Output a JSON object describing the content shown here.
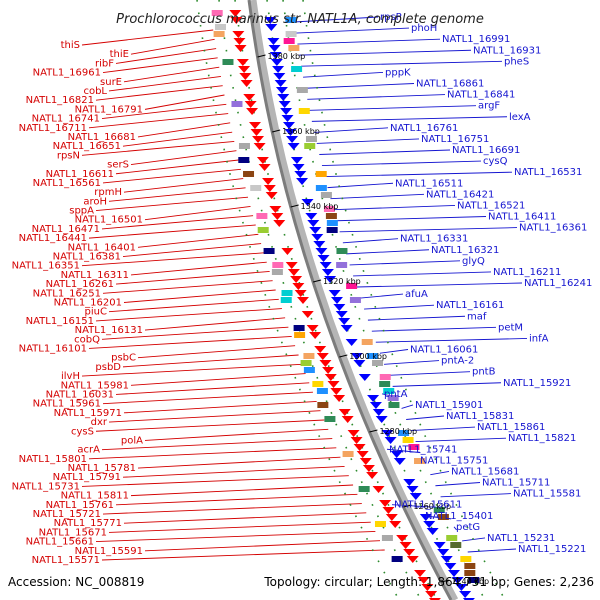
{
  "title": "Prochlorococcus marinus str. NATL1A, complete genome",
  "footer": {
    "accession": "Accession: NC_008819",
    "summary": "Topology: circular; Length: 1,864,731 bp; Genes: 2,236"
  },
  "colors": {
    "left_labels": "#d40000",
    "right_labels": "#1515d0",
    "backbone": "#888888"
  },
  "backbone_marks": [
    "1380 kbp",
    "1360 kbp",
    "1340 kbp",
    "1320 kbp",
    "1300 kbp",
    "1280 kbp",
    "1260 kbp",
    "1240 kbp"
  ],
  "left_labels": [
    "thiS",
    "thiE",
    "ribF",
    "NATL1_16961",
    "surE",
    "cobL",
    "NATL1_16821",
    "NATL1_16791",
    "NATL1_16741",
    "NATL1_16711",
    "NATL1_16681",
    "NATL1_16651",
    "rpsN",
    "serS",
    "NATL1_16611",
    "NATL1_16561",
    "rpmH",
    "aroH",
    "sppA",
    "NATL1_16501",
    "NATL1_16471",
    "NATL1_16441",
    "NATL1_16401",
    "NATL1_16381",
    "NATL1_16351",
    "NATL1_16311",
    "NATL1_16261",
    "NATL1_16251",
    "NATL1_16201",
    "piuC",
    "NATL1_16151",
    "NATL1_16131",
    "cobQ",
    "NATL1_16101",
    "psbC",
    "psbD",
    "ilvH",
    "NATL1_15981",
    "NATL1_16031",
    "NATL1_15961",
    "NATL1_15971",
    "dxr",
    "cysS",
    "polA",
    "acrA",
    "NATL1_15801",
    "NATL1_15781",
    "NATL1_15791",
    "NATL1_15731",
    "NATL1_15811",
    "NATL1_15761",
    "NATL1_15721",
    "NATL1_15771",
    "NATL1_15671",
    "NATL1_15661",
    "NATL1_15591",
    "NATL1_15571"
  ],
  "right_labels": [
    "rpsP",
    "phoH",
    "NATL1_16991",
    "NATL1_16931",
    "pheS",
    "pppK",
    "NATL1_16861",
    "NATL1_16841",
    "argF",
    "lexA",
    "NATL1_16761",
    "NATL1_16751",
    "NATL1_16691",
    "cysQ",
    "NATL1_16531",
    "NATL1_16511",
    "NATL1_16421",
    "NATL1_16521",
    "NATL1_16411",
    "NATL1_16361",
    "NATL1_16331",
    "NATL1_16321",
    "glyQ",
    "NATL1_16211",
    "NATL1_16241",
    "afuA",
    "NATL1_16161",
    "maf",
    "petM",
    "infA",
    "NATL1_16061",
    "pntA-2",
    "pntB",
    "NATL1_15921",
    "pntA",
    "NATL1_15901",
    "NATL1_15831",
    "NATL1_15861",
    "NATL1_15821",
    "NATL1_15741",
    "NATL1_15751",
    "NATL1_15681",
    "NATL1_15711",
    "NATL1_15581",
    "NATL1_15611",
    "NATL1_15401",
    "petG",
    "NATL1_15231",
    "NATL1_15221"
  ]
}
